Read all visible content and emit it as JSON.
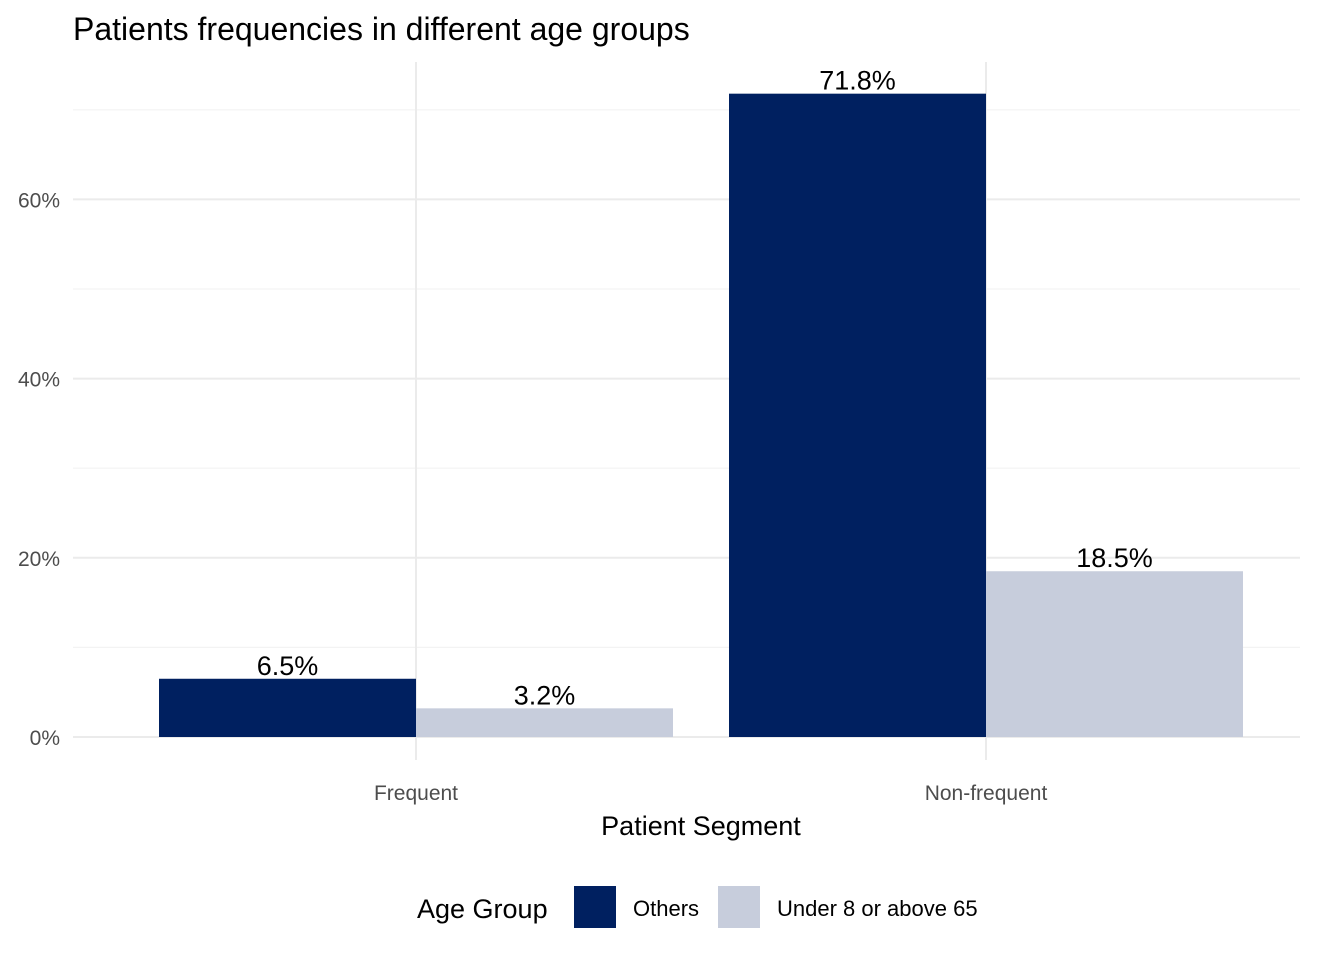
{
  "chart_data": {
    "type": "bar",
    "title": "Patients frequencies in different age groups",
    "xlabel": "Patient Segment",
    "ylabel": "",
    "categories": [
      "Frequent",
      "Non-frequent"
    ],
    "series": [
      {
        "name": "Others",
        "values": [
          6.5,
          71.8
        ],
        "labels": [
          "6.5%",
          "71.8%"
        ],
        "color": "#002060"
      },
      {
        "name": "Under 8 or above 65",
        "values": [
          3.2,
          18.5
        ],
        "labels": [
          "3.2%",
          "18.5%"
        ],
        "color": "#c7cddc"
      }
    ],
    "y_ticks": [
      0,
      20,
      40,
      60
    ],
    "y_tick_labels": [
      "0%",
      "20%",
      "40%",
      "60%"
    ],
    "ylim": [
      0,
      75
    ],
    "grid": true,
    "legend": {
      "title": "Age Group",
      "position": "bottom"
    }
  }
}
